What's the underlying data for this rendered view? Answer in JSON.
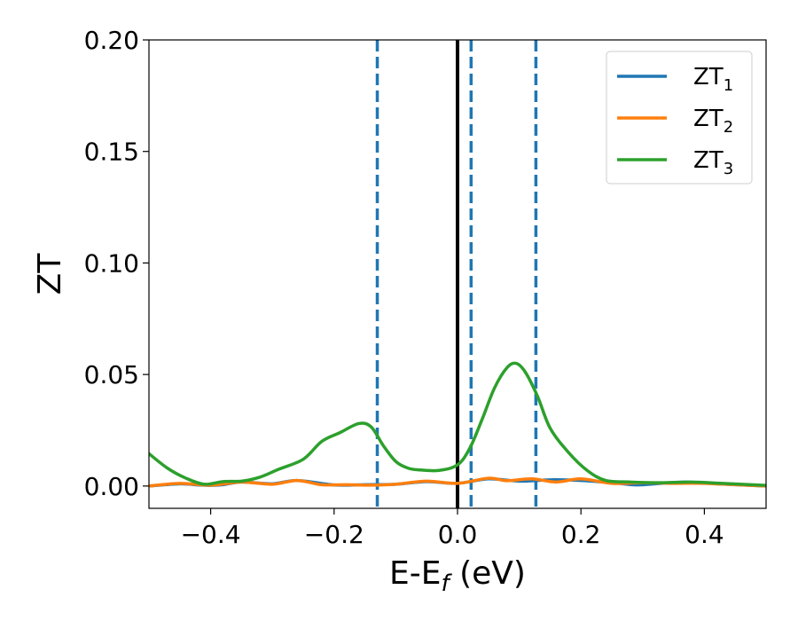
{
  "chart_data": {
    "type": "line",
    "xlabel": {
      "main": "E-E",
      "sub": "f",
      "unit": " (eV)"
    },
    "ylabel": "ZT",
    "xlim": [
      -0.5,
      0.5
    ],
    "ylim": [
      -0.01,
      0.2
    ],
    "xticks": [
      -0.4,
      -0.2,
      0.0,
      0.2,
      0.4
    ],
    "xtick_labels": [
      "−0.4",
      "−0.2",
      "0.0",
      "0.2",
      "0.4"
    ],
    "yticks": [
      0.0,
      0.05,
      0.1,
      0.15,
      0.2
    ],
    "ytick_labels": [
      "0.00",
      "0.05",
      "0.10",
      "0.15",
      "0.20"
    ],
    "grid": false,
    "legend_position": "top-right",
    "vertical_lines": [
      {
        "x": 0.0,
        "style": "solid",
        "color": "#000000"
      },
      {
        "x": -0.13,
        "style": "dashed",
        "color": "#1f77b4"
      },
      {
        "x": 0.022,
        "style": "dashed",
        "color": "#1f77b4"
      },
      {
        "x": 0.127,
        "style": "dashed",
        "color": "#1f77b4"
      }
    ],
    "series": [
      {
        "name": "ZT",
        "sub": "1",
        "color": "#1f77b4",
        "x": [
          -0.5,
          -0.45,
          -0.42,
          -0.4,
          -0.38,
          -0.35,
          -0.3,
          -0.26,
          -0.2,
          -0.15,
          -0.1,
          -0.05,
          0.0,
          0.05,
          0.1,
          0.15,
          0.2,
          0.25,
          0.29,
          0.33,
          0.37,
          0.42,
          0.46,
          0.5
        ],
        "y": [
          0.0,
          0.001,
          0.0005,
          0.0003,
          0.0006,
          0.0018,
          0.001,
          0.0025,
          0.0005,
          0.0006,
          0.0008,
          0.002,
          0.0012,
          0.0032,
          0.0022,
          0.0028,
          0.0025,
          0.0015,
          0.0005,
          0.0012,
          0.0018,
          0.001,
          0.0005,
          0.0
        ]
      },
      {
        "name": "ZT",
        "sub": "2",
        "color": "#ff7f0e",
        "x": [
          -0.5,
          -0.45,
          -0.4,
          -0.35,
          -0.3,
          -0.26,
          -0.22,
          -0.18,
          -0.14,
          -0.1,
          -0.05,
          0.0,
          0.05,
          0.08,
          0.12,
          0.16,
          0.2,
          0.25,
          0.3,
          0.35,
          0.4,
          0.45,
          0.5
        ],
        "y": [
          0.0,
          0.0012,
          0.0004,
          0.0018,
          0.0008,
          0.0025,
          0.0006,
          0.0006,
          0.0004,
          0.0008,
          0.0022,
          0.0012,
          0.0035,
          0.0024,
          0.0032,
          0.0018,
          0.0032,
          0.0012,
          0.0015,
          0.0012,
          0.0012,
          0.0006,
          0.0
        ]
      },
      {
        "name": "ZT",
        "sub": "3",
        "color": "#2ca02c",
        "x": [
          -0.5,
          -0.47,
          -0.44,
          -0.41,
          -0.38,
          -0.35,
          -0.32,
          -0.29,
          -0.25,
          -0.22,
          -0.19,
          -0.16,
          -0.14,
          -0.12,
          -0.1,
          -0.08,
          -0.06,
          -0.03,
          0.0,
          0.02,
          0.04,
          0.06,
          0.08,
          0.095,
          0.11,
          0.13,
          0.15,
          0.18,
          0.21,
          0.24,
          0.28,
          0.33,
          0.38,
          0.43,
          0.5
        ],
        "y": [
          0.0145,
          0.008,
          0.0035,
          0.0008,
          0.002,
          0.0022,
          0.004,
          0.0075,
          0.012,
          0.02,
          0.024,
          0.028,
          0.0265,
          0.018,
          0.011,
          0.008,
          0.0072,
          0.007,
          0.0095,
          0.017,
          0.03,
          0.044,
          0.053,
          0.055,
          0.051,
          0.04,
          0.026,
          0.015,
          0.007,
          0.0025,
          0.0018,
          0.0015,
          0.0018,
          0.0012,
          0.0003
        ]
      }
    ]
  }
}
